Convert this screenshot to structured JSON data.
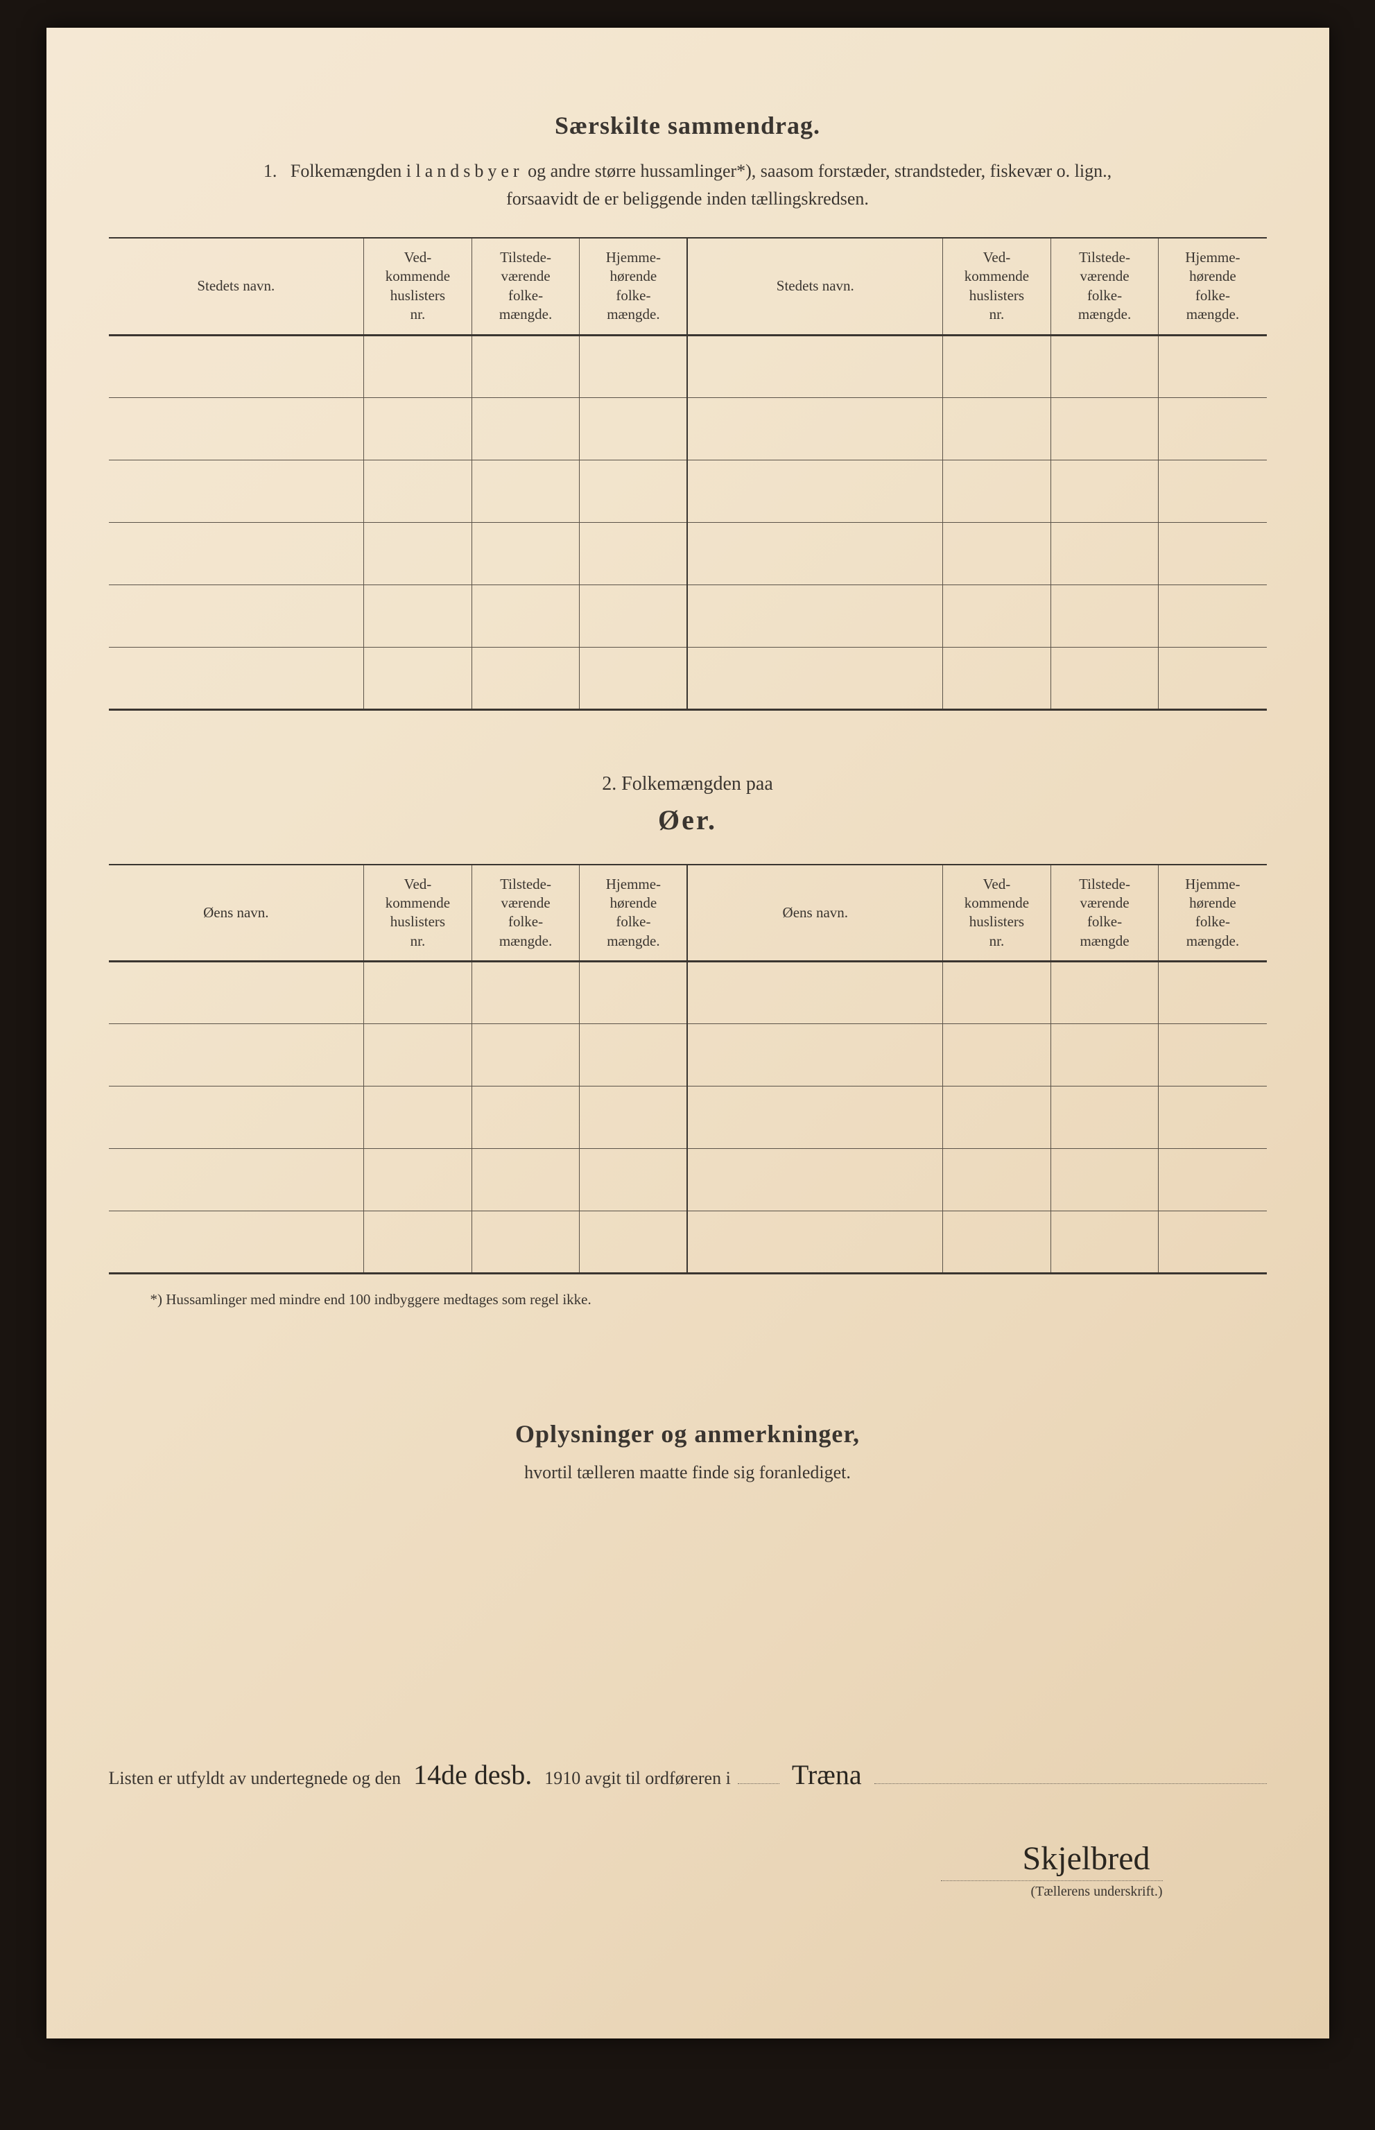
{
  "page": {
    "background_color": "#f2e4cc",
    "text_color": "#3a3530",
    "border_color": "#5a5248"
  },
  "section1": {
    "title": "Særskilte sammendrag.",
    "intro_num": "1.",
    "intro_part1": "Folkemængden i ",
    "intro_spaced": "landsbyer",
    "intro_part2": " og andre større hussamlinger*), saasom forstæder, strandsteder, fiskevær o. lign.,",
    "intro_line2": "forsaavidt de er beliggende inden tællingskredsen.",
    "headers": {
      "name_l": "Stedets navn.",
      "col2": "Ved-\nkommende\nhuslisters\nnr.",
      "col3": "Tilstede-\nværende\nfolke-\nmængde.",
      "col4": "Hjemme-\nhørende\nfolke-\nmængde.",
      "name_r": "Stedets navn.",
      "col6": "Ved-\nkommende\nhuslisters\nnr.",
      "col7": "Tilstede-\nværende\nfolke-\nmængde.",
      "col8": "Hjemme-\nhørende\nfolke-\nmængde."
    },
    "row_count": 6
  },
  "section2": {
    "title_a": "2.   Folkemængden paa",
    "title_b": "Øer.",
    "headers": {
      "name_l": "Øens navn.",
      "col2": "Ved-\nkommende\nhuslisters\nnr.",
      "col3": "Tilstede-\nværende\nfolke-\nmængde.",
      "col4": "Hjemme-\nhørende\nfolke-\nmængde.",
      "name_r": "Øens navn.",
      "col6": "Ved-\nkommende\nhuslisters\nnr.",
      "col7": "Tilstede-\nværende\nfolke-\nmængde",
      "col8": "Hjemme-\nhørende\nfolke-\nmængde."
    },
    "row_count": 5,
    "footnote": "*)  Hussamlinger med mindre end 100 indbyggere medtages som regel ikke."
  },
  "section3": {
    "title": "Oplysninger og anmerkninger,",
    "sub": "hvortil tælleren maatte finde sig foranlediget."
  },
  "signature": {
    "line1_a": "Listen er utfyldt av undertegnede og den",
    "hw_date": "14de desb.",
    "line1_b": "1910 avgit til ordføreren i",
    "hw_place": "Træna",
    "hw_name": "Skjelbred",
    "caption": "(Tællerens underskrift.)"
  }
}
